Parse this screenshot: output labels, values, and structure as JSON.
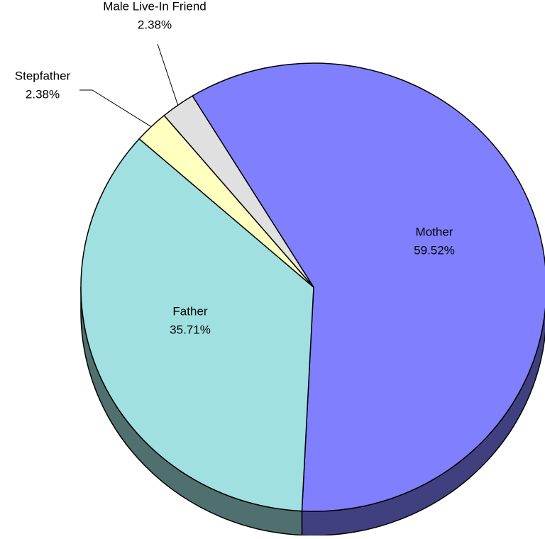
{
  "chart_data": {
    "type": "pie",
    "categories": [
      "Mother",
      "Father",
      "Stepfather",
      "Male Live-In Friend"
    ],
    "values": [
      59.52,
      35.71,
      2.38,
      2.38
    ],
    "value_labels": [
      "59.52%",
      "35.71%",
      "2.38%",
      "2.38%"
    ],
    "colors": [
      "#8080ff",
      "#a0e0e0",
      "#ffffc0",
      "#e0e0e0"
    ],
    "side_colors": [
      "#404080",
      "#507070",
      "#808060",
      "#707070"
    ]
  }
}
